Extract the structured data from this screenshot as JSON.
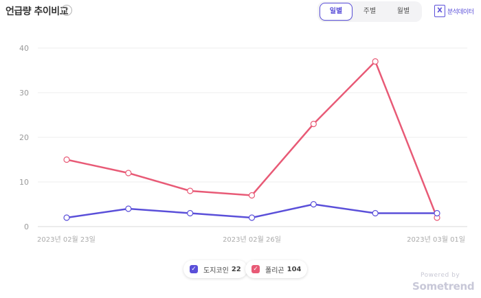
{
  "header": {
    "title": "언급량 추이비교",
    "help_glyph": "?",
    "periods": [
      "일별",
      "주별",
      "월별"
    ],
    "active_period": 0,
    "export_icon_text": "X",
    "export_label": "분석데이터",
    "accent_color": "#5a4fd9"
  },
  "legend": [
    {
      "name": "도지코인",
      "count": "22",
      "color": "#5a4fd9"
    },
    {
      "name": "폴리곤",
      "count": "104",
      "color": "#e85a76"
    }
  ],
  "footer": {
    "powered_by": "Powered by",
    "brand": "Sometrend"
  },
  "chart_data": {
    "type": "line",
    "title": "",
    "xlabel": "",
    "ylabel": "",
    "x": [
      "2023-02-23",
      "2023-02-24",
      "2023-02-25",
      "2023-02-26",
      "2023-02-27",
      "2023-02-28",
      "2023-03-01"
    ],
    "x_tick_labels": [
      "2023년 02월 23일",
      "",
      "",
      "2023년 02월 26일",
      "",
      "",
      "2023년 03월 01일"
    ],
    "ylim": [
      0,
      40
    ],
    "yticks": [
      0,
      10,
      20,
      30,
      40
    ],
    "grid": true,
    "series": [
      {
        "name": "도지코인",
        "values": [
          2,
          4,
          3,
          2,
          5,
          3,
          3
        ],
        "color": "#5a4fd9"
      },
      {
        "name": "폴리곤",
        "values": [
          15,
          12,
          8,
          7,
          23,
          37,
          2
        ],
        "color": "#e85a76"
      }
    ]
  }
}
